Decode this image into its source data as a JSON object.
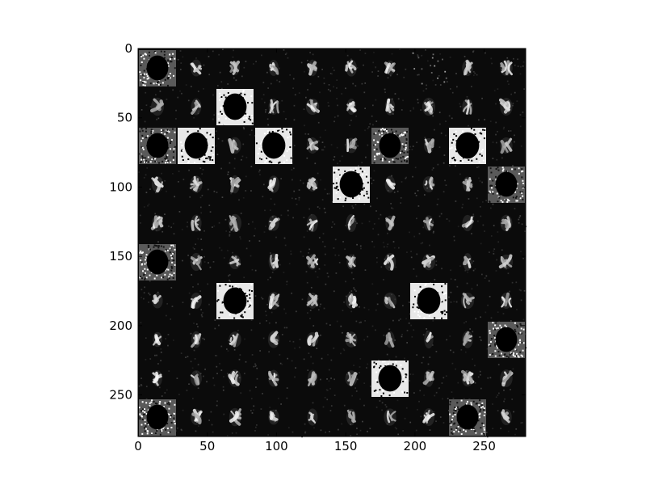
{
  "chart_data": {
    "type": "heatmap",
    "description": "Grayscale image grid (10x10 tiles of 28x28 px each) shown with imshow",
    "title": "",
    "xlabel": "",
    "ylabel": "",
    "colormap": "gray",
    "grid": false,
    "xlim": [
      0,
      280
    ],
    "ylim": [
      280,
      0
    ],
    "grid_rows": 10,
    "grid_cols": 10,
    "tile_size": 28,
    "x_ticks": [
      0,
      50,
      100,
      150,
      200,
      250
    ],
    "x_tick_labels": [
      "0",
      "50",
      "100",
      "150",
      "200",
      "250"
    ],
    "y_ticks": [
      0,
      50,
      100,
      150,
      200,
      250
    ],
    "y_tick_labels": [
      "0",
      "50",
      "100",
      "150",
      "200",
      "250"
    ],
    "tiles": [
      [
        "noisy",
        "digit",
        "digit",
        "digit",
        "digit",
        "digit",
        "digit",
        "dark",
        "digit",
        "digit"
      ],
      [
        "digit",
        "digit",
        "inverted",
        "digit",
        "digit",
        "digit",
        "digit",
        "digit",
        "digit",
        "digit"
      ],
      [
        "noisy",
        "inverted",
        "digit",
        "inverted",
        "digit",
        "digit",
        "noisy",
        "digit",
        "inverted",
        "digit"
      ],
      [
        "digit",
        "digit",
        "digit",
        "digit",
        "digit",
        "inverted",
        "digit",
        "digit",
        "digit",
        "noisy"
      ],
      [
        "digit",
        "digit",
        "digit",
        "digit",
        "digit",
        "digit",
        "digit",
        "digit",
        "digit",
        "digit"
      ],
      [
        "noisy",
        "digit",
        "digit",
        "digit",
        "digit",
        "digit",
        "digit",
        "digit",
        "digit",
        "digit"
      ],
      [
        "digit",
        "digit",
        "inverted",
        "digit",
        "digit",
        "digit",
        "digit",
        "inverted",
        "digit",
        "digit"
      ],
      [
        "digit",
        "digit",
        "digit",
        "digit",
        "digit",
        "digit",
        "digit",
        "digit",
        "digit",
        "noisy"
      ],
      [
        "digit",
        "digit",
        "digit",
        "digit",
        "digit",
        "digit",
        "inverted",
        "digit",
        "digit",
        "digit"
      ],
      [
        "noisy",
        "digit",
        "digit",
        "digit",
        "digit",
        "digit",
        "digit",
        "digit",
        "noisy",
        "digit"
      ]
    ],
    "colors": {
      "background": "#0b0b0b",
      "foreground": "#ffffff",
      "axes": "#000000"
    }
  }
}
